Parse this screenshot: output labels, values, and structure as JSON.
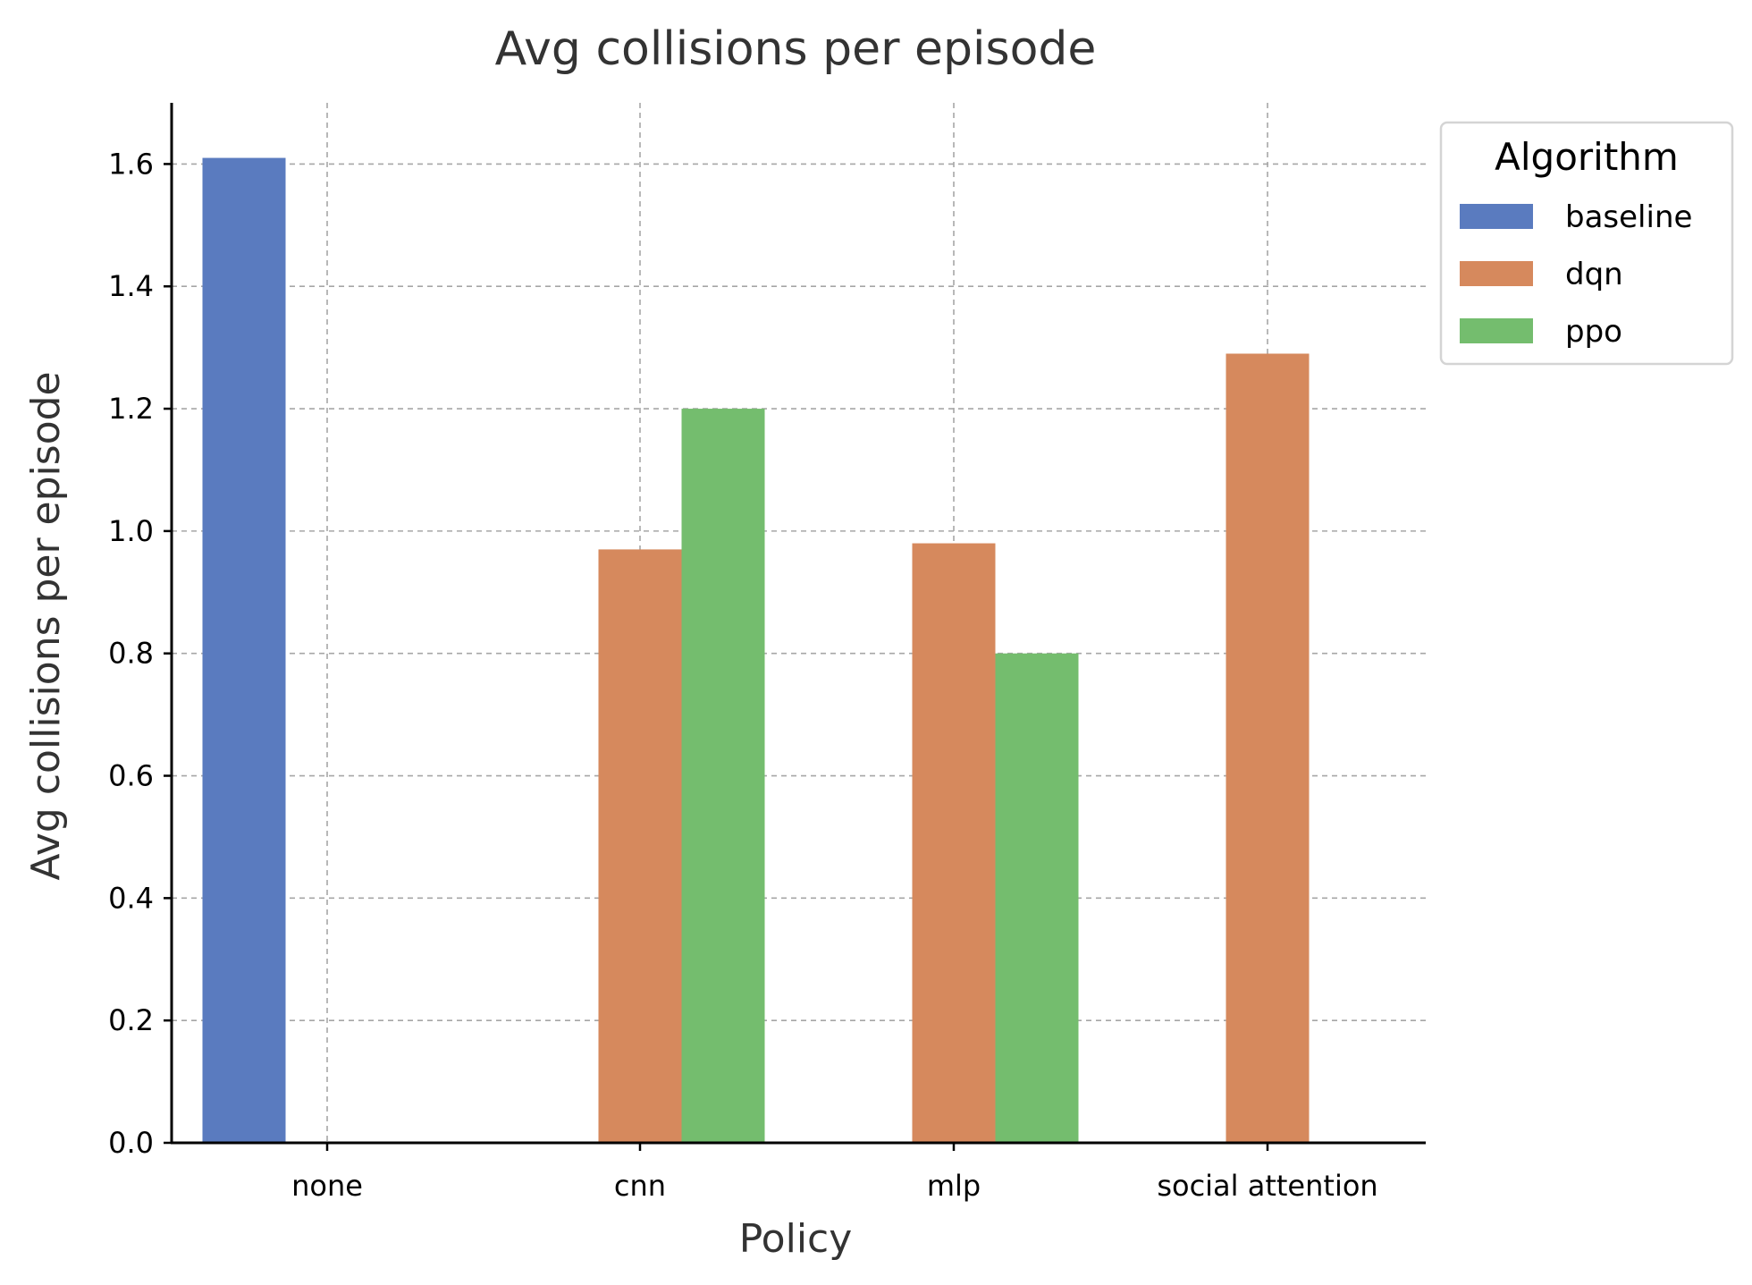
{
  "chart_data": {
    "type": "bar",
    "title": "Avg collisions per episode",
    "xlabel": "Policy",
    "ylabel": "Avg collisions per episode",
    "categories": [
      "none",
      "cnn",
      "mlp",
      "social attention"
    ],
    "series": [
      {
        "name": "baseline",
        "color": "#5a7bbf",
        "values": [
          1.61,
          null,
          null,
          null
        ]
      },
      {
        "name": "dqn",
        "color": "#d6895d",
        "values": [
          null,
          0.97,
          0.98,
          1.29
        ]
      },
      {
        "name": "ppo",
        "color": "#74bd6e",
        "values": [
          null,
          1.2,
          0.8,
          null
        ]
      }
    ],
    "ylim": [
      0,
      1.7
    ],
    "yticks": [
      0.0,
      0.2,
      0.4,
      0.6,
      0.8,
      1.0,
      1.2,
      1.4,
      1.6
    ],
    "ytick_labels": [
      "0.0",
      "0.2",
      "0.4",
      "0.6",
      "0.8",
      "1.0",
      "1.2",
      "1.4",
      "1.6"
    ],
    "grid": true,
    "legend": {
      "title": "Algorithm",
      "placement": "outside-top-right"
    }
  }
}
